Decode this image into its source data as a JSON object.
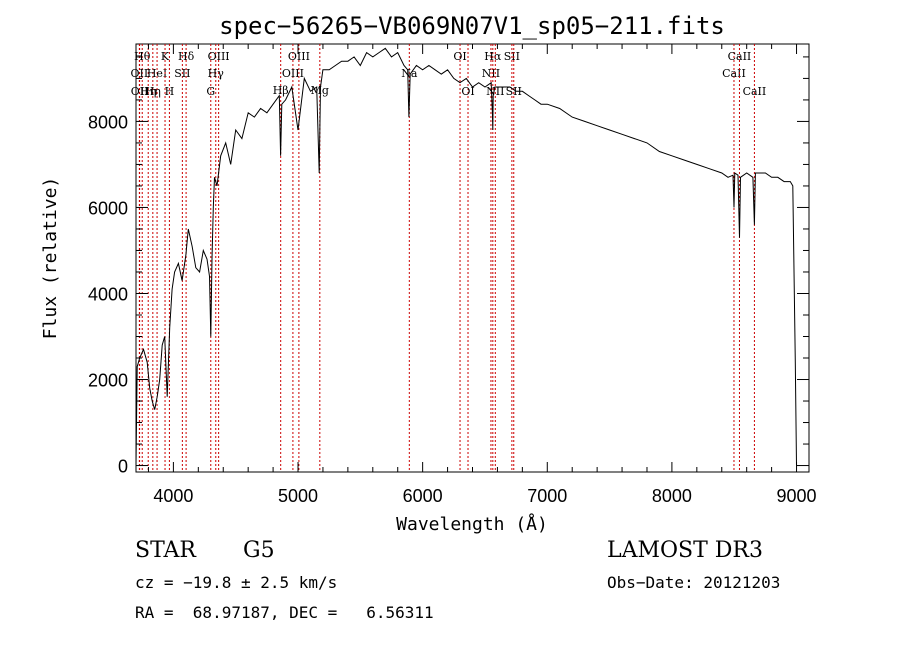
{
  "chart_data": {
    "type": "line",
    "title": "spec−56265−VB069N07V1_sp05−211.fits",
    "xlabel": "Wavelength (Å)",
    "ylabel": "Flux (relative)",
    "xlim": [
      3700,
      9100
    ],
    "ylim": [
      -150,
      9800
    ],
    "xticks": [
      4000,
      5000,
      6000,
      7000,
      8000,
      9000
    ],
    "yticks": [
      0,
      2000,
      4000,
      6000,
      8000
    ],
    "series": [
      {
        "name": "flux",
        "x": [
          3700,
          3710,
          3730,
          3760,
          3790,
          3810,
          3830,
          3850,
          3870,
          3890,
          3910,
          3930,
          3950,
          3970,
          3990,
          4010,
          4040,
          4070,
          4100,
          4120,
          4150,
          4180,
          4210,
          4240,
          4270,
          4290,
          4300,
          4310,
          4320,
          4330,
          4350,
          4380,
          4420,
          4460,
          4500,
          4550,
          4600,
          4650,
          4700,
          4750,
          4800,
          4850,
          4860,
          4870,
          4900,
          4950,
          5000,
          5050,
          5100,
          5150,
          5170,
          5180,
          5190,
          5200,
          5250,
          5300,
          5350,
          5400,
          5450,
          5500,
          5550,
          5600,
          5650,
          5700,
          5750,
          5800,
          5850,
          5880,
          5890,
          5900,
          5950,
          6000,
          6050,
          6100,
          6150,
          6200,
          6250,
          6300,
          6350,
          6400,
          6450,
          6500,
          6550,
          6560,
          6563,
          6566,
          6580,
          6650,
          6700,
          6750,
          6800,
          6850,
          6900,
          6950,
          7000,
          7100,
          7200,
          7300,
          7400,
          7500,
          7600,
          7700,
          7800,
          7900,
          8000,
          8100,
          8200,
          8300,
          8400,
          8450,
          8490,
          8498,
          8505,
          8530,
          8542,
          8550,
          8600,
          8650,
          8662,
          8670,
          8700,
          8750,
          8800,
          8850,
          8900,
          8950,
          8970,
          8990,
          9000
        ],
        "values": [
          0,
          2300,
          2500,
          2700,
          2400,
          1800,
          1500,
          1300,
          1600,
          2000,
          2800,
          3000,
          1600,
          3200,
          4100,
          4500,
          4700,
          4300,
          4900,
          5500,
          5100,
          4600,
          4500,
          5000,
          4800,
          4400,
          3000,
          4800,
          6000,
          6700,
          6500,
          7200,
          7500,
          7000,
          7800,
          7600,
          8200,
          8100,
          8300,
          8200,
          8400,
          8600,
          7200,
          8400,
          8500,
          8800,
          7800,
          9000,
          8700,
          8800,
          6800,
          8800,
          9000,
          9200,
          9200,
          9300,
          9400,
          9400,
          9500,
          9300,
          9600,
          9500,
          9600,
          9700,
          9500,
          9600,
          9300,
          9200,
          8100,
          9100,
          9300,
          9200,
          9300,
          9200,
          9100,
          9200,
          9000,
          8900,
          9000,
          8800,
          8900,
          8800,
          8900,
          8200,
          7800,
          8600,
          8800,
          8800,
          8800,
          8700,
          8700,
          8600,
          8500,
          8400,
          8400,
          8300,
          8100,
          8000,
          7900,
          7800,
          7700,
          7600,
          7500,
          7300,
          7200,
          7100,
          7000,
          6900,
          6800,
          6700,
          6750,
          6000,
          6800,
          6750,
          5300,
          6700,
          6800,
          6700,
          5600,
          6800,
          6800,
          6800,
          6700,
          6700,
          6600,
          6600,
          6500,
          2400,
          0
        ]
      }
    ],
    "lines": [
      {
        "w": 3750,
        "label": "Hθ",
        "row": 0
      },
      {
        "w": 3727,
        "label": "OII",
        "row": 1
      },
      {
        "w": 3729,
        "label": "OII",
        "row": 2
      },
      {
        "w": 3798,
        "label": "Hη",
        "row": 2
      },
      {
        "w": 3835,
        "label": "Hη",
        "row": 2
      },
      {
        "w": 3869,
        "label": "HeI",
        "row": 1
      },
      {
        "w": 3933,
        "label": "K",
        "row": 0
      },
      {
        "w": 3968,
        "label": "H",
        "row": 2
      },
      {
        "w": 4072,
        "label": "SII",
        "row": 1
      },
      {
        "w": 4102,
        "label": "Hδ",
        "row": 0
      },
      {
        "w": 4300,
        "label": "G",
        "row": 2
      },
      {
        "w": 4340,
        "label": "Hγ",
        "row": 1
      },
      {
        "w": 4363,
        "label": "OIII",
        "row": 0
      },
      {
        "w": 4861,
        "label": "Hβ",
        "row": 3
      },
      {
        "w": 4959,
        "label": "OIII",
        "row": 1
      },
      {
        "w": 5007,
        "label": "OIII",
        "row": 0
      },
      {
        "w": 5175,
        "label": "Mg",
        "row": 3
      },
      {
        "w": 5893,
        "label": "Na",
        "row": 1
      },
      {
        "w": 6300,
        "label": "OI",
        "row": 0
      },
      {
        "w": 6364,
        "label": "OI",
        "row": 2
      },
      {
        "w": 6548,
        "label": "NII",
        "row": 1
      },
      {
        "w": 6563,
        "label": "Hα",
        "row": 0
      },
      {
        "w": 6583,
        "label": "NII",
        "row": 2
      },
      {
        "w": 6716,
        "label": "SII",
        "row": 0
      },
      {
        "w": 6731,
        "label": "SII",
        "row": 2
      },
      {
        "w": 8498,
        "label": "CaII",
        "row": 1
      },
      {
        "w": 8542,
        "label": "CaII",
        "row": 0
      },
      {
        "w": 8662,
        "label": "CaII",
        "row": 2
      }
    ]
  },
  "footer": {
    "object_class": "STAR",
    "subclass": "G5",
    "survey": "LAMOST DR3",
    "cz": "cz = −19.8 ± 2.5 km/s",
    "obs_date": "Obs−Date: 20121203",
    "radec": "RA =  68.97187, DEC =   6.56311"
  }
}
